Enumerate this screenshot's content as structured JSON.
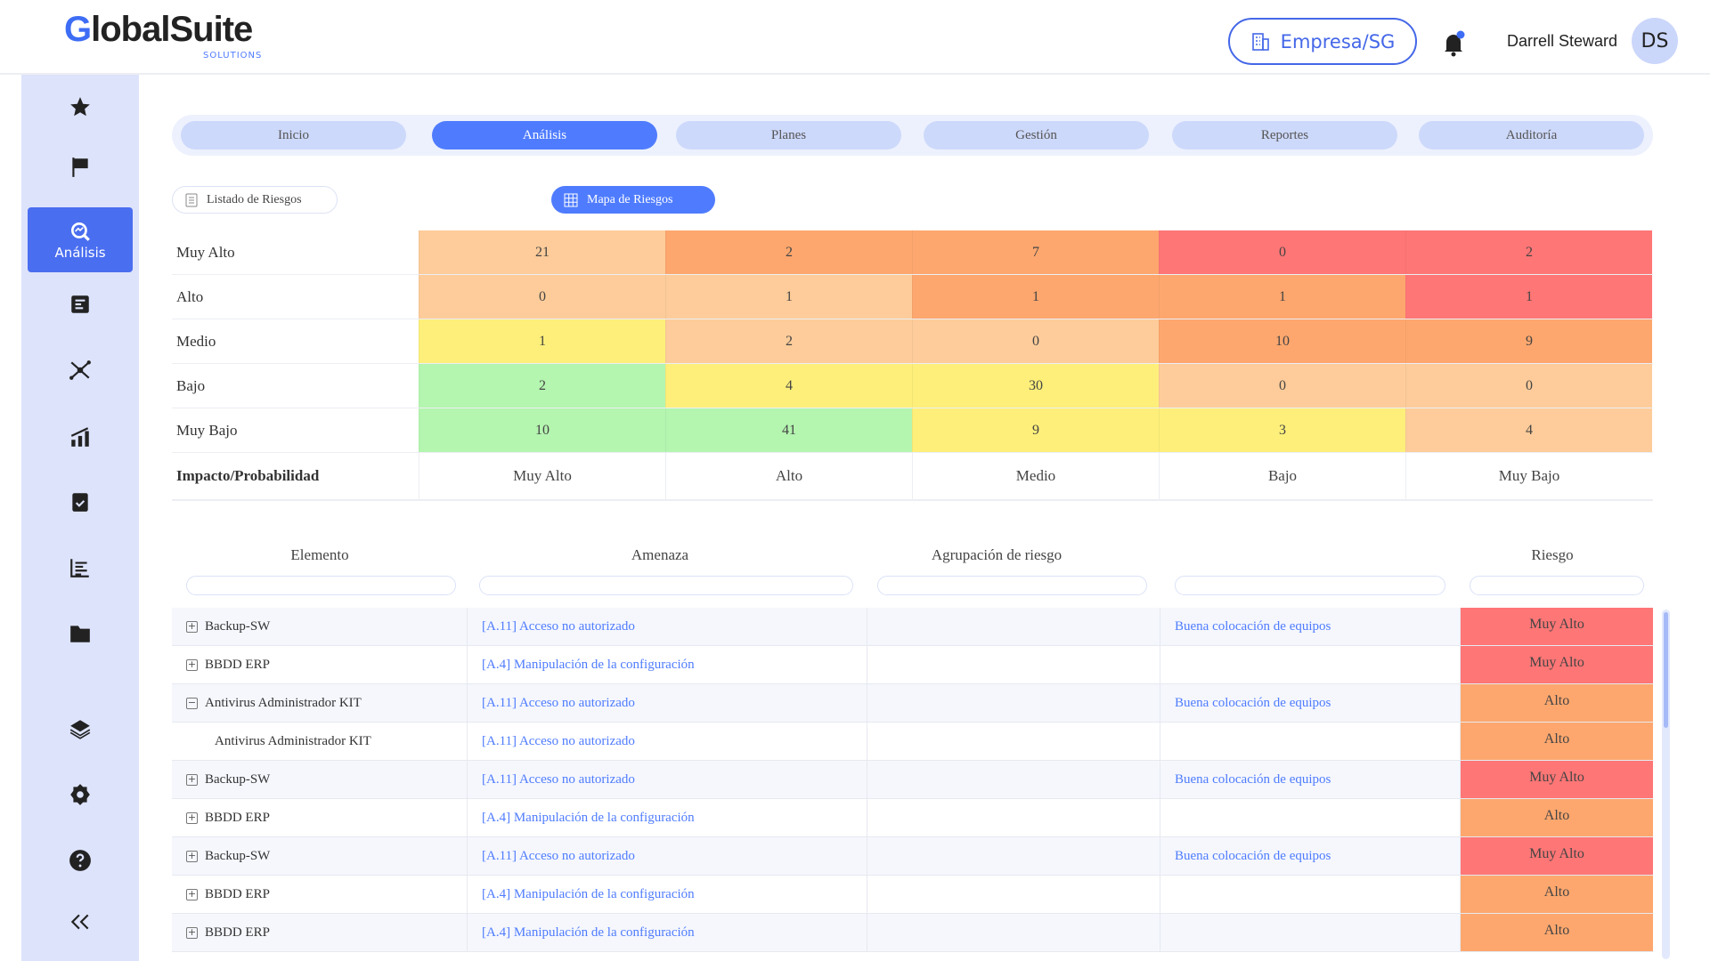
{
  "header": {
    "logo": "GlobalSuite",
    "logo_sub": "SOLUTIONS",
    "company": "Empresa/SG",
    "user_name": "Darrell Steward",
    "avatar_initials": "DS"
  },
  "colors": {
    "accent": "#4f7cff",
    "very_high": "#ff7676",
    "high": "#fda76e",
    "medium": "#fdcc9a",
    "low": "#fdef7a",
    "very_low": "#b4f5b0"
  },
  "sidebar": {
    "active_label": "Análisis",
    "icons": [
      "star-icon",
      "flag-icon",
      "analysis-icon",
      "document-icon",
      "network-icon",
      "chart-bars-icon",
      "clipboard-check-icon",
      "list-icon",
      "folder-icon",
      "layers-icon",
      "gear-icon",
      "help-icon",
      "collapse-icon"
    ]
  },
  "tabs": [
    "Inicio",
    "Análisis",
    "Planes",
    "Gestión",
    "Reportes",
    "Auditoría"
  ],
  "active_tab": "Análisis",
  "subnav": {
    "list": "Listado de Riesgos",
    "map": "Mapa de Riesgos",
    "active": "Mapa de Riesgos"
  },
  "matrix": {
    "axis_label": "Impacto/Probabilidad",
    "columns": [
      "Muy Alto",
      "Alto",
      "Medio",
      "Bajo",
      "Muy Bajo"
    ],
    "rows": [
      {
        "label": "Muy Alto",
        "values": [
          21,
          2,
          7,
          0,
          2
        ],
        "levels": [
          "medium",
          "high",
          "high",
          "very_high",
          "very_high"
        ]
      },
      {
        "label": "Alto",
        "values": [
          0,
          1,
          1,
          1,
          1
        ],
        "levels": [
          "medium",
          "medium",
          "high",
          "high",
          "very_high"
        ]
      },
      {
        "label": "Medio",
        "values": [
          1,
          2,
          0,
          10,
          9
        ],
        "levels": [
          "low",
          "medium",
          "medium",
          "high",
          "high"
        ]
      },
      {
        "label": "Bajo",
        "values": [
          2,
          4,
          30,
          0,
          0
        ],
        "levels": [
          "very_low",
          "low",
          "low",
          "medium",
          "medium"
        ]
      },
      {
        "label": "Muy Bajo",
        "values": [
          10,
          41,
          9,
          3,
          4
        ],
        "levels": [
          "very_low",
          "very_low",
          "low",
          "low",
          "medium"
        ]
      }
    ]
  },
  "table": {
    "headers": [
      "Elemento",
      "Amenaza",
      "Agrupación de riesgo",
      "",
      "Riesgo"
    ],
    "rows": [
      {
        "expander": "+",
        "elemento": "Backup-SW",
        "amenaza": "[A.11] Acceso no autorizado",
        "agrupacion": "",
        "control": "Buena colocación de equipos",
        "riesgo": "Muy Alto",
        "level": "very_high"
      },
      {
        "expander": "+",
        "elemento": "BBDD ERP",
        "amenaza": "[A.4] Manipulación de la configuración",
        "agrupacion": "",
        "control": "",
        "riesgo": "Muy Alto",
        "level": "very_high"
      },
      {
        "expander": "−",
        "elemento": "Antivirus Administrador KIT",
        "amenaza": "[A.11] Acceso no autorizado",
        "agrupacion": "",
        "control": "Buena colocación de equipos",
        "riesgo": "Alto",
        "level": "high"
      },
      {
        "expander": "",
        "elemento": "Antivirus Administrador KIT",
        "amenaza": "[A.11] Acceso no autorizado",
        "agrupacion": "",
        "control": "",
        "riesgo": "Alto",
        "level": "high"
      },
      {
        "expander": "+",
        "elemento": "Backup-SW",
        "amenaza": "[A.11] Acceso no autorizado",
        "agrupacion": "",
        "control": "Buena colocación de equipos",
        "riesgo": "Muy Alto",
        "level": "very_high"
      },
      {
        "expander": "+",
        "elemento": "BBDD ERP",
        "amenaza": "[A.4] Manipulación de la configuración",
        "agrupacion": "",
        "control": "",
        "riesgo": "Alto",
        "level": "high"
      },
      {
        "expander": "+",
        "elemento": "Backup-SW",
        "amenaza": "[A.11] Acceso no autorizado",
        "agrupacion": "",
        "control": "Buena colocación de equipos",
        "riesgo": "Muy Alto",
        "level": "very_high"
      },
      {
        "expander": "+",
        "elemento": "BBDD ERP",
        "amenaza": "[A.4] Manipulación de la configuración",
        "agrupacion": "",
        "control": "",
        "riesgo": "Alto",
        "level": "high"
      },
      {
        "expander": "+",
        "elemento": "BBDD ERP",
        "amenaza": "[A.4] Manipulación de la configuración",
        "agrupacion": "",
        "control": "",
        "riesgo": "Alto",
        "level": "high"
      }
    ]
  }
}
